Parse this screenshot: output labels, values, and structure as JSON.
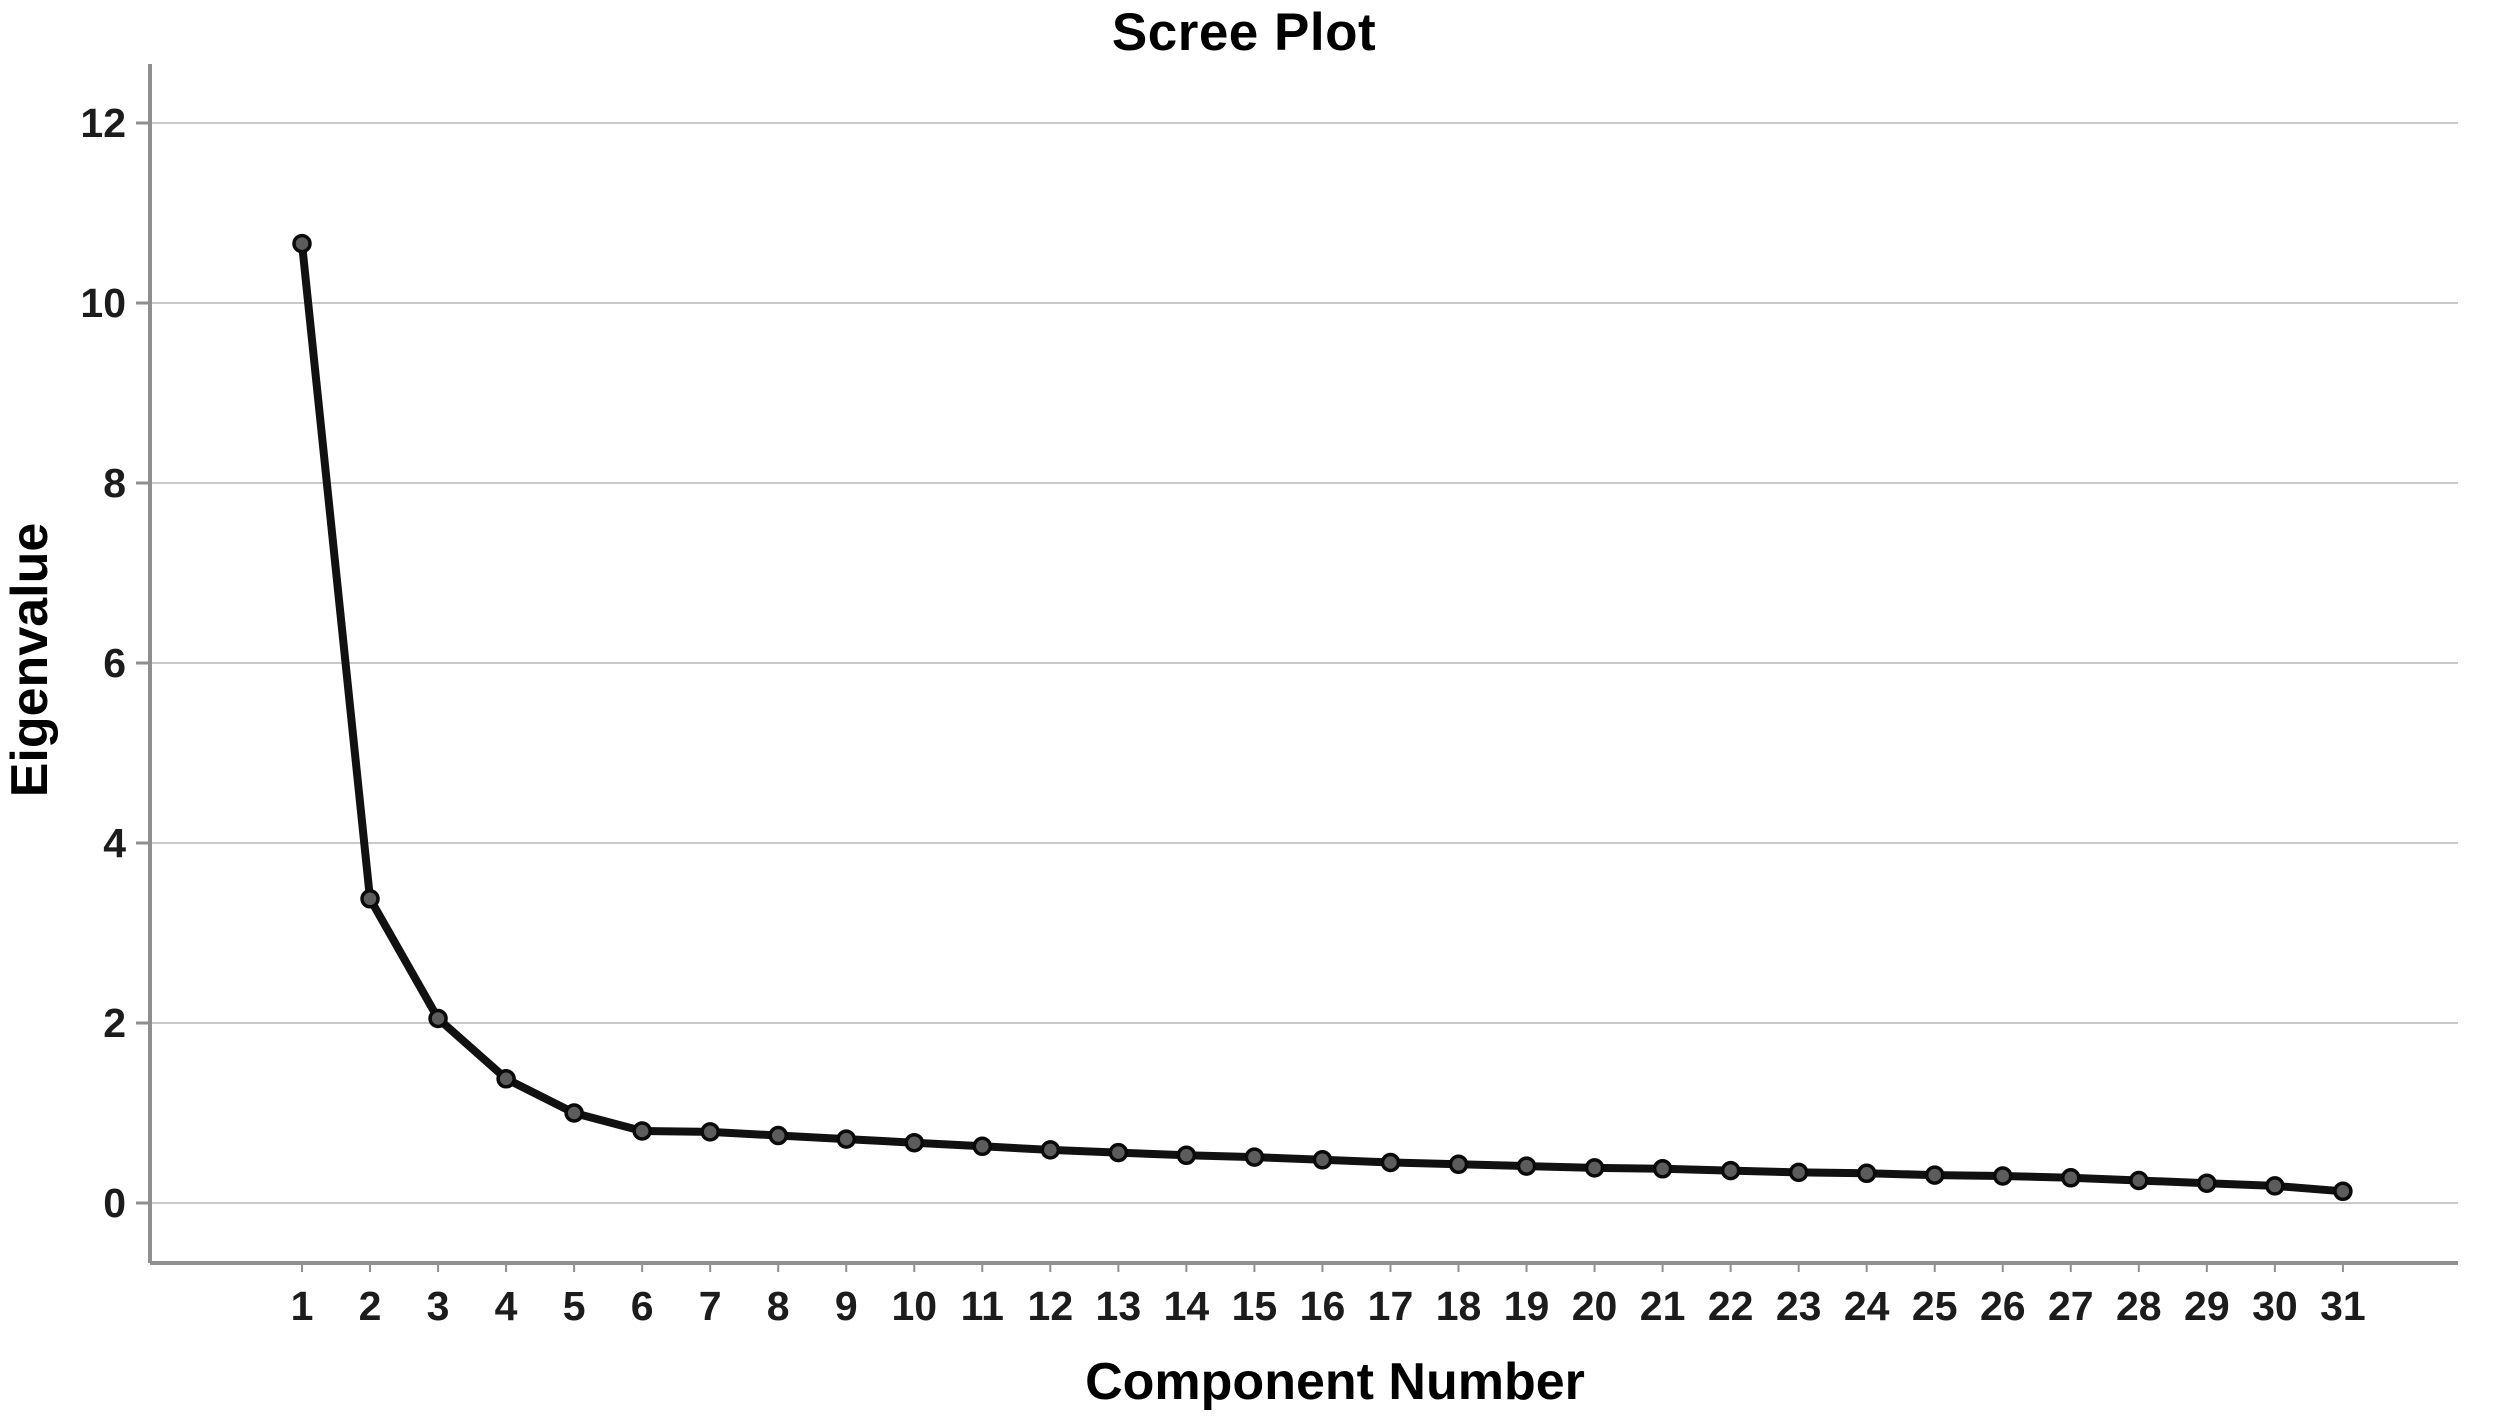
{
  "chart": {
    "title": "Scree Plot",
    "xlabel": "Component Number",
    "ylabel": "Eigenvalue"
  },
  "chart_data": {
    "type": "line",
    "title": "Scree Plot",
    "xlabel": "Component Number",
    "ylabel": "Eigenvalue",
    "x": [
      "1",
      "2",
      "3",
      "4",
      "5",
      "6",
      "7",
      "8",
      "9",
      "10",
      "11",
      "12",
      "13",
      "14",
      "15",
      "16",
      "17",
      "18",
      "19",
      "20",
      "21",
      "22",
      "23",
      "24",
      "25",
      "26",
      "27",
      "28",
      "29",
      "30",
      "31"
    ],
    "values": [
      10.66,
      3.38,
      2.05,
      1.38,
      1.0,
      0.8,
      0.79,
      0.75,
      0.71,
      0.67,
      0.63,
      0.59,
      0.56,
      0.53,
      0.51,
      0.48,
      0.45,
      0.43,
      0.41,
      0.39,
      0.38,
      0.36,
      0.34,
      0.33,
      0.31,
      0.3,
      0.28,
      0.25,
      0.22,
      0.19,
      0.13
    ],
    "y_ticks": [
      "0",
      "2",
      "4",
      "6",
      "8",
      "10",
      "12"
    ],
    "y_tick_values": [
      0,
      2,
      4,
      6,
      8,
      10,
      12
    ],
    "ylim": [
      0,
      12.6
    ],
    "xlim_categories": 31,
    "grid": "horizontal-only",
    "legend": "none",
    "marker": "circle",
    "style": {
      "line_color": "#111111",
      "marker_fill": "#5c5c5c",
      "marker_stroke": "#0a0a0a",
      "grid_color": "#c9c9c9",
      "axis_color": "#8f8f8f",
      "tick_text_color": "#1c1c1c",
      "title_color": "#000000",
      "background": "#ffffff"
    }
  }
}
